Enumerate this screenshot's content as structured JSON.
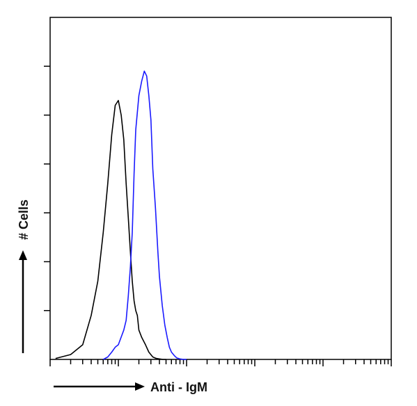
{
  "chart_data": {
    "type": "line",
    "title": "",
    "xlabel": "Anti - IgM",
    "ylabel": "# Cells",
    "x_scale": "log",
    "xlim": [
      1,
      100000
    ],
    "ylim": [
      0,
      7
    ],
    "grid": false,
    "legend": "none",
    "series": [
      {
        "color": "#000000",
        "x": [
          1.2,
          2,
          3,
          4,
          5,
          6,
          7,
          8,
          9,
          10,
          11,
          12,
          13,
          14,
          15,
          16,
          17,
          18,
          19,
          20,
          22,
          25,
          28,
          32,
          36,
          40,
          45,
          50
        ],
        "y": [
          0.02,
          0.1,
          0.3,
          0.9,
          1.6,
          2.6,
          3.6,
          4.6,
          5.2,
          5.3,
          5.0,
          4.5,
          3.6,
          2.9,
          2.2,
          1.6,
          1.2,
          1.0,
          0.9,
          0.6,
          0.45,
          0.3,
          0.15,
          0.05,
          0.02,
          0.01,
          0.0,
          0.0
        ]
      },
      {
        "color": "#1a1aff",
        "x": [
          6,
          7,
          8,
          9,
          10,
          12,
          13,
          14,
          15,
          16,
          17,
          18,
          20,
          22,
          24,
          26,
          28,
          30,
          32,
          35,
          38,
          40,
          44,
          48,
          52,
          56,
          60,
          66,
          72,
          80,
          90,
          100
        ],
        "y": [
          0.0,
          0.05,
          0.15,
          0.25,
          0.3,
          0.6,
          0.8,
          1.3,
          1.9,
          2.6,
          3.8,
          4.7,
          5.4,
          5.7,
          5.9,
          5.8,
          5.4,
          4.9,
          3.9,
          3.1,
          2.2,
          1.7,
          1.1,
          0.7,
          0.45,
          0.25,
          0.15,
          0.08,
          0.03,
          0.01,
          0.0,
          0.0
        ]
      }
    ]
  }
}
